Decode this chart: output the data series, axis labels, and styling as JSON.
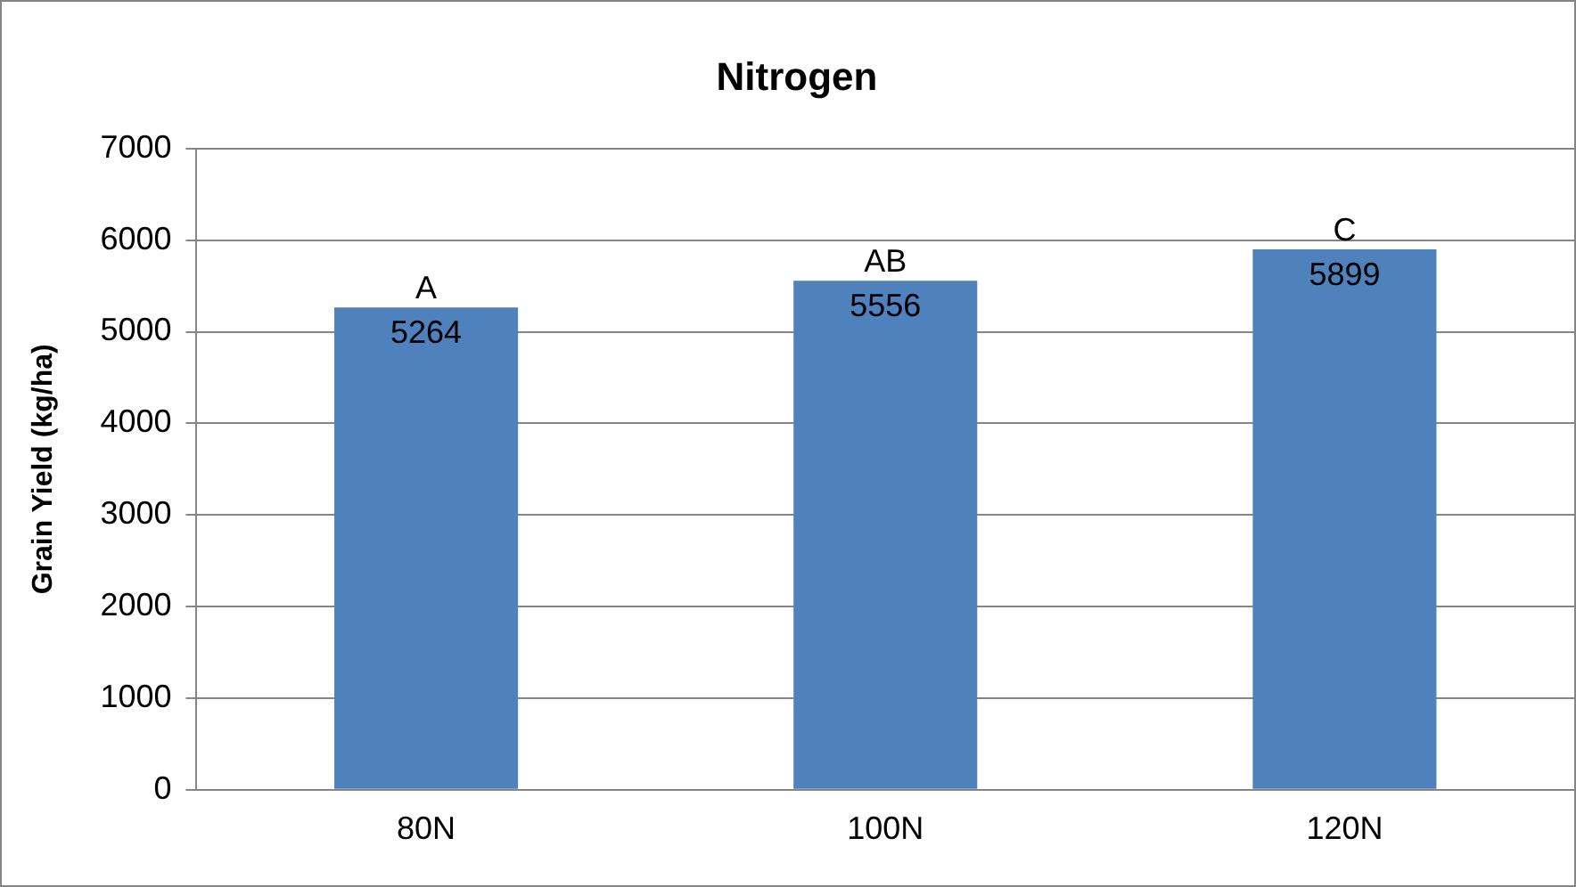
{
  "chart_data": {
    "type": "bar",
    "title": "Nitrogen",
    "ylabel": "Grain Yield (kg/ha)",
    "categories": [
      "80N",
      "100N",
      "120N"
    ],
    "values": [
      5264,
      5556,
      5899
    ],
    "color": "#4f81bd",
    "ylim": [
      0,
      7000
    ],
    "yticks": [
      0,
      1000,
      2000,
      3000,
      4000,
      5000,
      6000,
      7000
    ],
    "grid": "y",
    "data_labels": true,
    "annotations": [
      {
        "text": "A",
        "x": "80N",
        "y": 5264
      },
      {
        "text": "AB",
        "x": "100N",
        "y": 5556
      },
      {
        "text": "C",
        "x": "120N",
        "y": 5899
      }
    ]
  }
}
